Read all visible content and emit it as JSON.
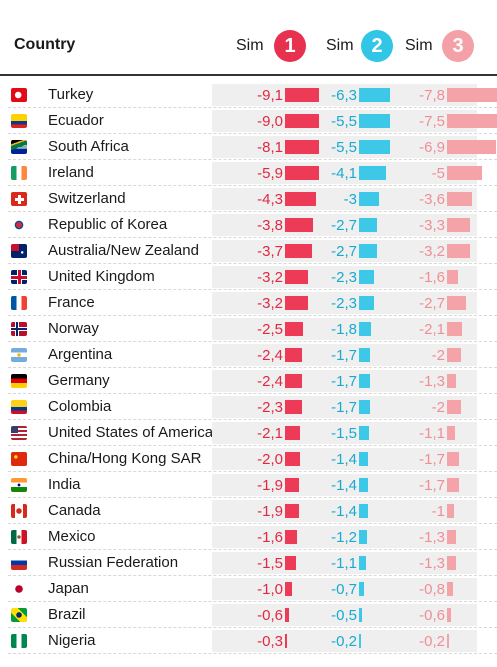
{
  "header": {
    "title": "Country",
    "sims": [
      {
        "label": "Sim",
        "number": "1",
        "color": "#e8304f"
      },
      {
        "label": "Sim",
        "number": "2",
        "color": "#31c5e6"
      },
      {
        "label": "Sim",
        "number": "3",
        "color": "#f3a0a6"
      }
    ]
  },
  "colors": {
    "sim1_bar": "#ec3a57",
    "sim2_bar": "#3ec8e8",
    "sim3_bar": "#f4a3a8",
    "sim1_text": "#e12843",
    "sim2_text": "#1aa9cf",
    "sim3_text": "#f08e96",
    "row_bg": "#efefef"
  },
  "chart_data": {
    "type": "table",
    "columns": [
      "Country",
      "Sim 1",
      "Sim 2",
      "Sim 3"
    ],
    "series": [
      {
        "name": "Sim 1",
        "values": [
          -9.1,
          -9.0,
          -8.1,
          -5.9,
          -4.3,
          -3.8,
          -3.7,
          -3.2,
          -3.2,
          -2.5,
          -2.4,
          -2.4,
          -2.3,
          -2.1,
          -2.0,
          -1.9,
          -1.9,
          -1.6,
          -1.5,
          -1.0,
          -0.6,
          -0.3
        ]
      },
      {
        "name": "Sim 2",
        "values": [
          -6.3,
          -5.5,
          -5.5,
          -4.1,
          -3.0,
          -2.7,
          -2.7,
          -2.3,
          -2.3,
          -1.8,
          -1.7,
          -1.7,
          -1.7,
          -1.5,
          -1.4,
          -1.4,
          -1.4,
          -1.2,
          -1.1,
          -0.7,
          -0.5,
          -0.2
        ]
      },
      {
        "name": "Sim 3",
        "values": [
          -7.8,
          -7.5,
          -6.9,
          -5.0,
          -3.6,
          -3.3,
          -3.2,
          -1.6,
          -2.7,
          -2.1,
          -2.0,
          -1.3,
          -2.0,
          -1.1,
          -1.7,
          -1.7,
          -1.0,
          -1.3,
          -1.3,
          -0.8,
          -0.6,
          -0.2
        ]
      }
    ],
    "rows": [
      {
        "country": "Turkey",
        "flag": "turkey-flag-icon",
        "s1": "-9,1",
        "s2": "-6,3",
        "s3": "-7,8"
      },
      {
        "country": "Ecuador",
        "flag": "ecuador-flag-icon",
        "s1": "-9,0",
        "s2": "-5,5",
        "s3": "-7,5"
      },
      {
        "country": "South Africa",
        "flag": "south-africa-flag-icon",
        "s1": "-8,1",
        "s2": "-5,5",
        "s3": "-6,9"
      },
      {
        "country": "Ireland",
        "flag": "ireland-flag-icon",
        "s1": "-5,9",
        "s2": "-4,1",
        "s3": "-5"
      },
      {
        "country": "Switzerland",
        "flag": "switzerland-flag-icon",
        "s1": "-4,3",
        "s2": "-3",
        "s3": "-3,6"
      },
      {
        "country": "Republic of Korea",
        "flag": "korea-flag-icon",
        "s1": "-3,8",
        "s2": "-2,7",
        "s3": "-3,3"
      },
      {
        "country": "Australia/New Zealand",
        "flag": "australia-flag-icon",
        "s1": "-3,7",
        "s2": "-2,7",
        "s3": "-3,2"
      },
      {
        "country": "United Kingdom",
        "flag": "uk-flag-icon",
        "s1": "-3,2",
        "s2": "-2,3",
        "s3": "-1,6"
      },
      {
        "country": "France",
        "flag": "france-flag-icon",
        "s1": "-3,2",
        "s2": "-2,3",
        "s3": "-2,7"
      },
      {
        "country": "Norway",
        "flag": "norway-flag-icon",
        "s1": "-2,5",
        "s2": "-1,8",
        "s3": "-2,1"
      },
      {
        "country": "Argentina",
        "flag": "argentina-flag-icon",
        "s1": "-2,4",
        "s2": "-1,7",
        "s3": "-2"
      },
      {
        "country": "Germany",
        "flag": "germany-flag-icon",
        "s1": "-2,4",
        "s2": "-1,7",
        "s3": "-1,3"
      },
      {
        "country": "Colombia",
        "flag": "colombia-flag-icon",
        "s1": "-2,3",
        "s2": "-1,7",
        "s3": "-2"
      },
      {
        "country": "United States of America",
        "flag": "usa-flag-icon",
        "s1": "-2,1",
        "s2": "-1,5",
        "s3": "-1,1"
      },
      {
        "country": "China/Hong Kong SAR",
        "flag": "china-flag-icon",
        "s1": "-2,0",
        "s2": "-1,4",
        "s3": "-1,7"
      },
      {
        "country": "India",
        "flag": "india-flag-icon",
        "s1": "-1,9",
        "s2": "-1,4",
        "s3": "-1,7"
      },
      {
        "country": "Canada",
        "flag": "canada-flag-icon",
        "s1": "-1,9",
        "s2": "-1,4",
        "s3": "-1"
      },
      {
        "country": "Mexico",
        "flag": "mexico-flag-icon",
        "s1": "-1,6",
        "s2": "-1,2",
        "s3": "-1,3"
      },
      {
        "country": "Russian Federation",
        "flag": "russia-flag-icon",
        "s1": "-1,5",
        "s2": "-1,1",
        "s3": "-1,3"
      },
      {
        "country": "Japan",
        "flag": "japan-flag-icon",
        "s1": "-1,0",
        "s2": "-0,7",
        "s3": "-0,8"
      },
      {
        "country": "Brazil",
        "flag": "brazil-flag-icon",
        "s1": "-0,6",
        "s2": "-0,5",
        "s3": "-0,6"
      },
      {
        "country": "Nigeria",
        "flag": "nigeria-flag-icon",
        "s1": "-0,3",
        "s2": "-0,2",
        "s3": "-0,2"
      }
    ]
  }
}
